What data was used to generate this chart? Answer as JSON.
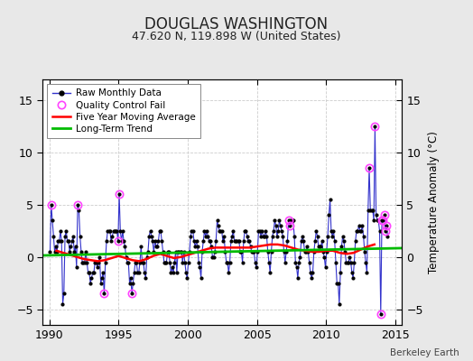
{
  "title": "DOUGLAS WASHINGTON",
  "subtitle": "47.620 N, 119.898 W (United States)",
  "ylabel_right": "Temperature Anomaly (°C)",
  "watermark": "Berkeley Earth",
  "xlim": [
    1989.5,
    2015.5
  ],
  "ylim": [
    -6.5,
    17
  ],
  "yticks": [
    -5,
    0,
    5,
    10,
    15
  ],
  "xticks": [
    1990,
    1995,
    2000,
    2005,
    2010,
    2015
  ],
  "bg_color": "#e8e8e8",
  "plot_bg_color": "#ffffff",
  "raw_line_color": "#3333cc",
  "raw_dot_color": "#000000",
  "qc_fail_color": "#ff44ff",
  "moving_avg_color": "#ff0000",
  "trend_color": "#00bb00",
  "raw_data": [
    [
      1990.0417,
      0.5
    ],
    [
      1990.125,
      5.0
    ],
    [
      1990.2083,
      3.5
    ],
    [
      1990.2917,
      2.0
    ],
    [
      1990.375,
      0.5
    ],
    [
      1990.4583,
      1.0
    ],
    [
      1990.5417,
      0.5
    ],
    [
      1990.625,
      1.5
    ],
    [
      1990.7083,
      1.5
    ],
    [
      1990.7917,
      2.5
    ],
    [
      1990.875,
      1.5
    ],
    [
      1990.9583,
      -4.5
    ],
    [
      1991.0417,
      -3.5
    ],
    [
      1991.125,
      2.0
    ],
    [
      1991.2083,
      2.5
    ],
    [
      1991.2917,
      1.5
    ],
    [
      1991.375,
      1.5
    ],
    [
      1991.4583,
      0.5
    ],
    [
      1991.5417,
      1.0
    ],
    [
      1991.625,
      1.5
    ],
    [
      1991.7083,
      2.0
    ],
    [
      1991.7917,
      0.5
    ],
    [
      1991.875,
      1.0
    ],
    [
      1991.9583,
      -1.0
    ],
    [
      1992.0417,
      5.0
    ],
    [
      1992.125,
      4.5
    ],
    [
      1992.2083,
      2.0
    ],
    [
      1992.2917,
      0.5
    ],
    [
      1992.375,
      -0.5
    ],
    [
      1992.4583,
      -0.5
    ],
    [
      1992.5417,
      -0.5
    ],
    [
      1992.625,
      0.5
    ],
    [
      1992.7083,
      -0.5
    ],
    [
      1992.7917,
      -1.5
    ],
    [
      1992.875,
      -1.5
    ],
    [
      1992.9583,
      -2.5
    ],
    [
      1993.0417,
      -2.0
    ],
    [
      1993.125,
      -1.5
    ],
    [
      1993.2083,
      -1.5
    ],
    [
      1993.2917,
      -0.5
    ],
    [
      1993.375,
      -0.5
    ],
    [
      1993.4583,
      -1.0
    ],
    [
      1993.5417,
      -0.5
    ],
    [
      1993.625,
      0.0
    ],
    [
      1993.7083,
      -2.5
    ],
    [
      1993.7917,
      -2.0
    ],
    [
      1993.875,
      -1.5
    ],
    [
      1993.9583,
      -3.5
    ],
    [
      1994.0417,
      -0.5
    ],
    [
      1994.125,
      1.5
    ],
    [
      1994.2083,
      2.5
    ],
    [
      1994.2917,
      2.5
    ],
    [
      1994.375,
      2.5
    ],
    [
      1994.4583,
      1.5
    ],
    [
      1994.5417,
      2.0
    ],
    [
      1994.625,
      2.5
    ],
    [
      1994.7083,
      2.5
    ],
    [
      1994.7917,
      2.5
    ],
    [
      1994.875,
      2.5
    ],
    [
      1994.9583,
      1.5
    ],
    [
      1995.0417,
      6.0
    ],
    [
      1995.125,
      2.5
    ],
    [
      1995.2083,
      1.5
    ],
    [
      1995.2917,
      2.5
    ],
    [
      1995.375,
      1.5
    ],
    [
      1995.4583,
      1.0
    ],
    [
      1995.5417,
      0.0
    ],
    [
      1995.625,
      -0.5
    ],
    [
      1995.7083,
      -0.5
    ],
    [
      1995.7917,
      -2.5
    ],
    [
      1995.875,
      -2.0
    ],
    [
      1995.9583,
      -3.5
    ],
    [
      1996.0417,
      -2.5
    ],
    [
      1996.125,
      -1.5
    ],
    [
      1996.2083,
      -0.5
    ],
    [
      1996.2917,
      -0.5
    ],
    [
      1996.375,
      -1.5
    ],
    [
      1996.4583,
      -1.5
    ],
    [
      1996.5417,
      -0.5
    ],
    [
      1996.625,
      1.0
    ],
    [
      1996.7083,
      -0.5
    ],
    [
      1996.7917,
      -0.5
    ],
    [
      1996.875,
      -1.5
    ],
    [
      1996.9583,
      -2.0
    ],
    [
      1997.0417,
      0.0
    ],
    [
      1997.125,
      0.5
    ],
    [
      1997.2083,
      2.0
    ],
    [
      1997.2917,
      2.5
    ],
    [
      1997.375,
      2.0
    ],
    [
      1997.4583,
      1.5
    ],
    [
      1997.5417,
      0.5
    ],
    [
      1997.625,
      1.5
    ],
    [
      1997.7083,
      1.0
    ],
    [
      1997.7917,
      1.0
    ],
    [
      1997.875,
      1.5
    ],
    [
      1997.9583,
      2.5
    ],
    [
      1998.0417,
      2.5
    ],
    [
      1998.125,
      1.5
    ],
    [
      1998.2083,
      0.5
    ],
    [
      1998.2917,
      -0.5
    ],
    [
      1998.375,
      -0.5
    ],
    [
      1998.4583,
      -0.5
    ],
    [
      1998.5417,
      0.5
    ],
    [
      1998.625,
      0.5
    ],
    [
      1998.7083,
      -0.5
    ],
    [
      1998.7917,
      -1.5
    ],
    [
      1998.875,
      -1.0
    ],
    [
      1998.9583,
      -1.5
    ],
    [
      1999.0417,
      -0.5
    ],
    [
      1999.125,
      0.5
    ],
    [
      1999.2083,
      -1.5
    ],
    [
      1999.2917,
      0.5
    ],
    [
      1999.375,
      0.5
    ],
    [
      1999.4583,
      0.5
    ],
    [
      1999.5417,
      0.5
    ],
    [
      1999.625,
      -0.5
    ],
    [
      1999.7083,
      0.5
    ],
    [
      1999.7917,
      -0.5
    ],
    [
      1999.875,
      -1.5
    ],
    [
      1999.9583,
      -2.0
    ],
    [
      2000.0417,
      -0.5
    ],
    [
      2000.125,
      0.5
    ],
    [
      2000.2083,
      2.0
    ],
    [
      2000.2917,
      2.5
    ],
    [
      2000.375,
      2.5
    ],
    [
      2000.4583,
      1.5
    ],
    [
      2000.5417,
      1.0
    ],
    [
      2000.625,
      1.5
    ],
    [
      2000.7083,
      1.0
    ],
    [
      2000.7917,
      -0.5
    ],
    [
      2000.875,
      -1.0
    ],
    [
      2000.9583,
      -2.0
    ],
    [
      2001.0417,
      0.5
    ],
    [
      2001.125,
      1.5
    ],
    [
      2001.2083,
      2.5
    ],
    [
      2001.2917,
      2.0
    ],
    [
      2001.375,
      2.5
    ],
    [
      2001.4583,
      2.0
    ],
    [
      2001.5417,
      1.5
    ],
    [
      2001.625,
      1.5
    ],
    [
      2001.7083,
      1.0
    ],
    [
      2001.7917,
      0.0
    ],
    [
      2001.875,
      0.0
    ],
    [
      2001.9583,
      0.5
    ],
    [
      2002.0417,
      1.5
    ],
    [
      2002.125,
      3.5
    ],
    [
      2002.2083,
      3.0
    ],
    [
      2002.2917,
      2.5
    ],
    [
      2002.375,
      2.5
    ],
    [
      2002.4583,
      2.5
    ],
    [
      2002.5417,
      1.5
    ],
    [
      2002.625,
      2.0
    ],
    [
      2002.7083,
      0.5
    ],
    [
      2002.7917,
      -0.5
    ],
    [
      2002.875,
      -0.5
    ],
    [
      2002.9583,
      -1.5
    ],
    [
      2003.0417,
      -0.5
    ],
    [
      2003.125,
      1.5
    ],
    [
      2003.2083,
      2.0
    ],
    [
      2003.2917,
      2.5
    ],
    [
      2003.375,
      1.5
    ],
    [
      2003.4583,
      1.5
    ],
    [
      2003.5417,
      1.5
    ],
    [
      2003.625,
      1.5
    ],
    [
      2003.7083,
      1.5
    ],
    [
      2003.7917,
      0.5
    ],
    [
      2003.875,
      0.5
    ],
    [
      2003.9583,
      -0.5
    ],
    [
      2004.0417,
      1.5
    ],
    [
      2004.125,
      2.5
    ],
    [
      2004.2083,
      2.5
    ],
    [
      2004.2917,
      2.0
    ],
    [
      2004.375,
      1.5
    ],
    [
      2004.4583,
      1.5
    ],
    [
      2004.5417,
      1.0
    ],
    [
      2004.625,
      0.5
    ],
    [
      2004.7083,
      0.5
    ],
    [
      2004.7917,
      0.5
    ],
    [
      2004.875,
      -0.5
    ],
    [
      2004.9583,
      -1.0
    ],
    [
      2005.0417,
      0.5
    ],
    [
      2005.125,
      2.5
    ],
    [
      2005.2083,
      2.5
    ],
    [
      2005.2917,
      2.0
    ],
    [
      2005.375,
      2.5
    ],
    [
      2005.4583,
      2.0
    ],
    [
      2005.5417,
      2.0
    ],
    [
      2005.625,
      2.5
    ],
    [
      2005.7083,
      2.0
    ],
    [
      2005.7917,
      0.5
    ],
    [
      2005.875,
      -0.5
    ],
    [
      2005.9583,
      -1.5
    ],
    [
      2006.0417,
      0.5
    ],
    [
      2006.125,
      2.0
    ],
    [
      2006.2083,
      2.5
    ],
    [
      2006.2917,
      3.5
    ],
    [
      2006.375,
      3.0
    ],
    [
      2006.4583,
      2.0
    ],
    [
      2006.5417,
      2.5
    ],
    [
      2006.625,
      3.5
    ],
    [
      2006.7083,
      3.0
    ],
    [
      2006.7917,
      2.5
    ],
    [
      2006.875,
      2.0
    ],
    [
      2006.9583,
      0.5
    ],
    [
      2007.0417,
      -0.5
    ],
    [
      2007.125,
      0.5
    ],
    [
      2007.2083,
      1.5
    ],
    [
      2007.2917,
      3.5
    ],
    [
      2007.375,
      3.0
    ],
    [
      2007.4583,
      3.5
    ],
    [
      2007.5417,
      3.5
    ],
    [
      2007.625,
      3.5
    ],
    [
      2007.7083,
      2.0
    ],
    [
      2007.7917,
      -0.5
    ],
    [
      2007.875,
      -1.0
    ],
    [
      2007.9583,
      -2.0
    ],
    [
      2008.0417,
      -0.5
    ],
    [
      2008.125,
      0.0
    ],
    [
      2008.2083,
      1.5
    ],
    [
      2008.2917,
      2.0
    ],
    [
      2008.375,
      1.5
    ],
    [
      2008.4583,
      0.5
    ],
    [
      2008.5417,
      0.5
    ],
    [
      2008.625,
      1.0
    ],
    [
      2008.7083,
      0.5
    ],
    [
      2008.7917,
      -0.5
    ],
    [
      2008.875,
      -1.5
    ],
    [
      2008.9583,
      -2.0
    ],
    [
      2009.0417,
      -1.5
    ],
    [
      2009.125,
      0.5
    ],
    [
      2009.2083,
      1.5
    ],
    [
      2009.2917,
      2.5
    ],
    [
      2009.375,
      2.0
    ],
    [
      2009.4583,
      1.0
    ],
    [
      2009.5417,
      1.0
    ],
    [
      2009.625,
      1.0
    ],
    [
      2009.7083,
      1.5
    ],
    [
      2009.7917,
      0.5
    ],
    [
      2009.875,
      0.0
    ],
    [
      2009.9583,
      -1.0
    ],
    [
      2010.0417,
      0.5
    ],
    [
      2010.125,
      2.0
    ],
    [
      2010.2083,
      4.0
    ],
    [
      2010.2917,
      5.5
    ],
    [
      2010.375,
      2.5
    ],
    [
      2010.4583,
      2.0
    ],
    [
      2010.5417,
      2.5
    ],
    [
      2010.625,
      1.5
    ],
    [
      2010.7083,
      -0.5
    ],
    [
      2010.7917,
      -2.5
    ],
    [
      2010.875,
      -2.5
    ],
    [
      2010.9583,
      -4.5
    ],
    [
      2011.0417,
      -1.5
    ],
    [
      2011.125,
      1.0
    ],
    [
      2011.2083,
      2.0
    ],
    [
      2011.2917,
      1.5
    ],
    [
      2011.375,
      0.5
    ],
    [
      2011.4583,
      -0.5
    ],
    [
      2011.5417,
      -0.5
    ],
    [
      2011.625,
      -0.5
    ],
    [
      2011.7083,
      0.0
    ],
    [
      2011.7917,
      -0.5
    ],
    [
      2011.875,
      -1.5
    ],
    [
      2011.9583,
      -2.0
    ],
    [
      2012.0417,
      -0.5
    ],
    [
      2012.125,
      1.5
    ],
    [
      2012.2083,
      2.5
    ],
    [
      2012.2917,
      2.5
    ],
    [
      2012.375,
      3.0
    ],
    [
      2012.4583,
      2.5
    ],
    [
      2012.5417,
      2.5
    ],
    [
      2012.625,
      3.0
    ],
    [
      2012.7083,
      2.0
    ],
    [
      2012.7917,
      0.5
    ],
    [
      2012.875,
      -0.5
    ],
    [
      2012.9583,
      -1.5
    ],
    [
      2013.0417,
      4.5
    ],
    [
      2013.125,
      8.5
    ],
    [
      2013.2083,
      4.5
    ],
    [
      2013.2917,
      4.5
    ],
    [
      2013.375,
      4.5
    ],
    [
      2013.4583,
      3.5
    ],
    [
      2013.5417,
      12.5
    ],
    [
      2013.625,
      4.0
    ],
    [
      2013.7083,
      3.5
    ],
    [
      2013.7917,
      3.5
    ],
    [
      2013.875,
      2.5
    ],
    [
      2013.9583,
      -5.5
    ],
    [
      2014.0417,
      3.5
    ],
    [
      2014.125,
      3.5
    ],
    [
      2014.2083,
      4.0
    ],
    [
      2014.2917,
      2.5
    ],
    [
      2014.375,
      3.0
    ],
    [
      2014.4583,
      2.0
    ]
  ],
  "qc_fail_points": [
    [
      1990.125,
      5.0
    ],
    [
      1992.0417,
      5.0
    ],
    [
      1993.9583,
      -3.5
    ],
    [
      1994.9583,
      1.5
    ],
    [
      1995.0417,
      6.0
    ],
    [
      1995.9583,
      -3.5
    ],
    [
      2007.2917,
      3.5
    ],
    [
      2007.375,
      3.0
    ],
    [
      2013.125,
      8.5
    ],
    [
      2013.5417,
      12.5
    ],
    [
      2013.9583,
      -5.5
    ],
    [
      2014.0417,
      3.5
    ],
    [
      2014.125,
      3.5
    ],
    [
      2014.2083,
      4.0
    ],
    [
      2014.2917,
      2.5
    ],
    [
      2014.375,
      3.0
    ]
  ],
  "moving_avg": [
    [
      1990.5,
      0.6
    ],
    [
      1991.0,
      0.4
    ],
    [
      1991.5,
      0.2
    ],
    [
      1992.0,
      0.0
    ],
    [
      1992.5,
      -0.2
    ],
    [
      1993.0,
      -0.3
    ],
    [
      1993.5,
      -0.4
    ],
    [
      1994.0,
      -0.3
    ],
    [
      1994.5,
      -0.1
    ],
    [
      1995.0,
      0.1
    ],
    [
      1995.5,
      -0.1
    ],
    [
      1996.0,
      -0.3
    ],
    [
      1996.5,
      -0.4
    ],
    [
      1997.0,
      -0.2
    ],
    [
      1997.5,
      0.1
    ],
    [
      1998.0,
      0.3
    ],
    [
      1998.5,
      0.1
    ],
    [
      1999.0,
      -0.1
    ],
    [
      1999.5,
      0.0
    ],
    [
      2000.0,
      0.2
    ],
    [
      2000.5,
      0.4
    ],
    [
      2001.0,
      0.6
    ],
    [
      2001.5,
      0.8
    ],
    [
      2002.0,
      0.9
    ],
    [
      2002.5,
      0.9
    ],
    [
      2003.0,
      0.9
    ],
    [
      2003.5,
      0.9
    ],
    [
      2004.0,
      0.9
    ],
    [
      2004.5,
      0.9
    ],
    [
      2005.0,
      1.0
    ],
    [
      2005.5,
      1.1
    ],
    [
      2006.0,
      1.2
    ],
    [
      2006.5,
      1.2
    ],
    [
      2007.0,
      1.1
    ],
    [
      2007.5,
      0.9
    ],
    [
      2008.0,
      0.7
    ],
    [
      2008.5,
      0.6
    ],
    [
      2009.0,
      0.5
    ],
    [
      2009.5,
      0.5
    ],
    [
      2010.0,
      0.6
    ],
    [
      2010.5,
      0.6
    ],
    [
      2011.0,
      0.4
    ],
    [
      2011.5,
      0.3
    ],
    [
      2012.0,
      0.4
    ],
    [
      2012.5,
      0.7
    ],
    [
      2013.0,
      1.0
    ],
    [
      2013.5,
      1.2
    ]
  ],
  "trend_x": [
    1989.5,
    2015.5
  ],
  "trend_y": [
    0.15,
    0.85
  ]
}
